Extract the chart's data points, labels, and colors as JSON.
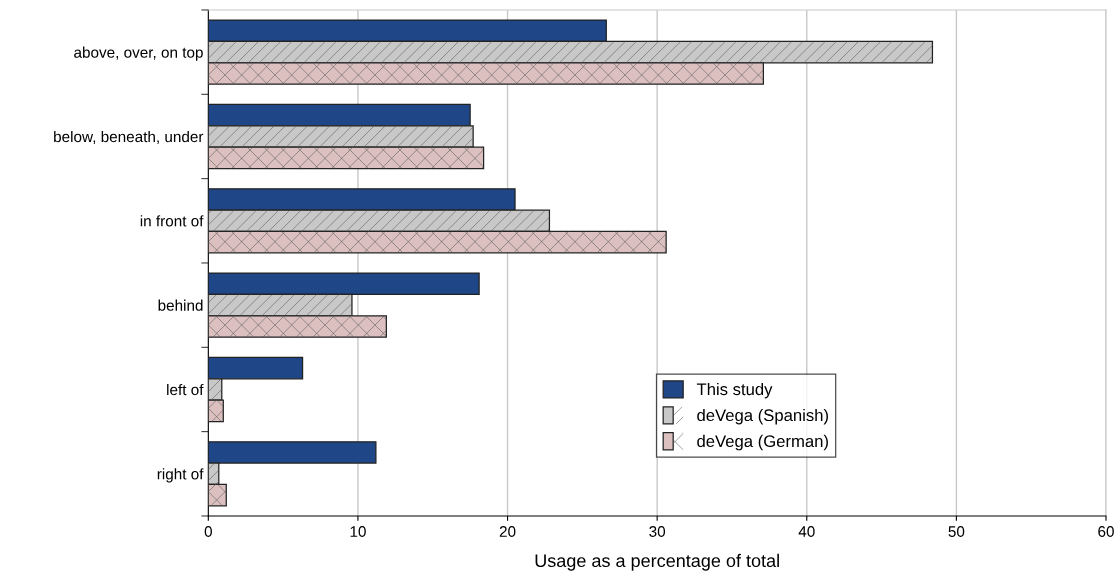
{
  "chart_data": {
    "type": "bar",
    "orientation": "horizontal",
    "xlabel": "Usage as a percentage of total",
    "categories": [
      "above, over, on top",
      "below, beneath, under",
      "in front of",
      "behind",
      "left of",
      "right of"
    ],
    "series": [
      {
        "name": "This study",
        "color": "#1f4788",
        "values": [
          26.6,
          17.5,
          20.5,
          18.1,
          6.3,
          11.2
        ]
      },
      {
        "name": "deVega (Spanish)",
        "color": "#c8c8c8",
        "values": [
          48.4,
          17.7,
          22.8,
          9.6,
          0.9,
          0.7
        ]
      },
      {
        "name": "deVega (German)",
        "color": "#dcc0c0",
        "values": [
          37.1,
          18.4,
          30.6,
          11.9,
          1.0,
          1.2
        ]
      }
    ],
    "xlim": [
      0,
      60
    ],
    "xticks": [
      0,
      10,
      20,
      30,
      40,
      50,
      60
    ],
    "grid": "x",
    "legend": "bottom right"
  }
}
